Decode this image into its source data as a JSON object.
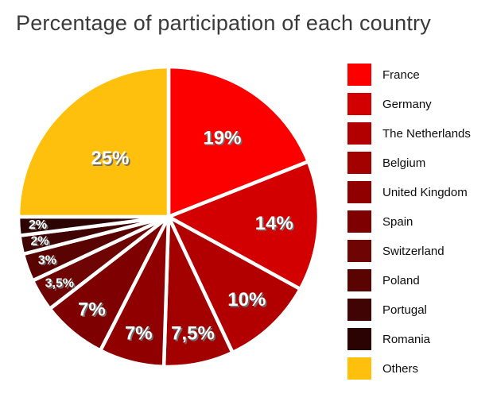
{
  "title": "Percentage of participation of each country",
  "colors": {
    "background": "#ffffff",
    "title_text": "#3a3a3a",
    "separator": "#ffffff",
    "slice_label_text": "#ffffff",
    "slice_label_shadow": "#6f6f6f",
    "legend_text": "#0d0d0d"
  },
  "chart_data": {
    "type": "pie",
    "title": "Percentage of participation of each country",
    "start_angle_deg": 0,
    "direction": "clockwise",
    "legend_position": "right",
    "decimal_separator": ",",
    "slices": [
      {
        "name": "France",
        "value": 19,
        "label": "19%",
        "color": "#fc0000"
      },
      {
        "name": "Germany",
        "value": 14,
        "label": "14%",
        "color": "#d20000"
      },
      {
        "name": "The Netherlands",
        "value": 10,
        "label": "10%",
        "color": "#b20000"
      },
      {
        "name": "Belgium",
        "value": 7.5,
        "label": "7,5%",
        "color": "#a30000"
      },
      {
        "name": "United Kingdom",
        "value": 7,
        "label": "7%",
        "color": "#910000"
      },
      {
        "name": "Spain",
        "value": 7,
        "label": "7%",
        "color": "#7e0000"
      },
      {
        "name": "Switzerland",
        "value": 3.5,
        "label": "3,5%",
        "color": "#6e0404"
      },
      {
        "name": "Poland",
        "value": 3,
        "label": "3%",
        "color": "#5a0303"
      },
      {
        "name": "Portugal",
        "value": 2,
        "label": "2%",
        "color": "#400404"
      },
      {
        "name": "Romania",
        "value": 2,
        "label": "2%",
        "color": "#2c0303"
      },
      {
        "name": "Others",
        "value": 25,
        "label": "25%",
        "color": "#fec00d"
      }
    ]
  }
}
